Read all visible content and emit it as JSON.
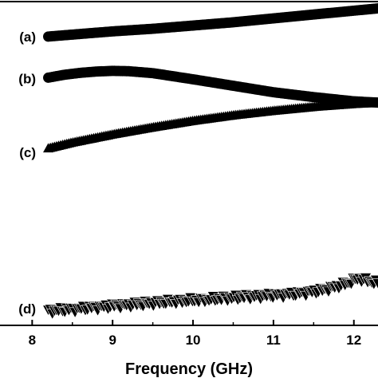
{
  "chart_data": {
    "type": "scatter",
    "xlabel": "Frequency (GHz)",
    "xlim": [
      7.6,
      12.3
    ],
    "ylim": [
      0,
      1
    ],
    "x_ticks": [
      "8",
      "9",
      "10",
      "11",
      "12"
    ],
    "grid": false,
    "series": [
      {
        "name": "(a)",
        "marker": "circle",
        "points": [
          [
            8.2,
            0.892
          ],
          [
            8.5,
            0.898
          ],
          [
            9.0,
            0.908
          ],
          [
            9.5,
            0.916
          ],
          [
            10.0,
            0.926
          ],
          [
            10.5,
            0.936
          ],
          [
            11.0,
            0.948
          ],
          [
            11.5,
            0.96
          ],
          [
            12.0,
            0.972
          ],
          [
            12.3,
            0.979
          ]
        ]
      },
      {
        "name": "(b)",
        "marker": "circle",
        "points": [
          [
            8.2,
            0.765
          ],
          [
            8.4,
            0.774
          ],
          [
            8.6,
            0.78
          ],
          [
            8.8,
            0.784
          ],
          [
            9.0,
            0.786
          ],
          [
            9.2,
            0.785
          ],
          [
            9.5,
            0.779
          ],
          [
            10.0,
            0.76
          ],
          [
            10.5,
            0.74
          ],
          [
            11.0,
            0.72
          ],
          [
            11.5,
            0.705
          ],
          [
            12.0,
            0.692
          ],
          [
            12.3,
            0.688
          ]
        ]
      },
      {
        "name": "(c)",
        "marker": "triangle-up",
        "points": [
          [
            8.2,
            0.547
          ],
          [
            8.5,
            0.565
          ],
          [
            9.0,
            0.59
          ],
          [
            9.5,
            0.612
          ],
          [
            10.0,
            0.632
          ],
          [
            10.5,
            0.649
          ],
          [
            11.0,
            0.663
          ],
          [
            11.5,
            0.675
          ],
          [
            12.0,
            0.684
          ],
          [
            12.3,
            0.688
          ]
        ]
      },
      {
        "name": "(d)",
        "marker": "triangle-down",
        "points": [
          [
            8.2,
            0.044
          ],
          [
            8.6,
            0.052
          ],
          [
            9.0,
            0.06
          ],
          [
            9.4,
            0.067
          ],
          [
            9.8,
            0.074
          ],
          [
            10.2,
            0.08
          ],
          [
            10.6,
            0.087
          ],
          [
            11.0,
            0.093
          ],
          [
            11.3,
            0.098
          ],
          [
            11.6,
            0.108
          ],
          [
            11.9,
            0.128
          ],
          [
            12.05,
            0.145
          ],
          [
            12.2,
            0.136
          ],
          [
            12.3,
            0.13
          ]
        ]
      }
    ]
  },
  "colors": {
    "markers": "#000000",
    "axes": "#000000",
    "background": "#ffffff"
  }
}
